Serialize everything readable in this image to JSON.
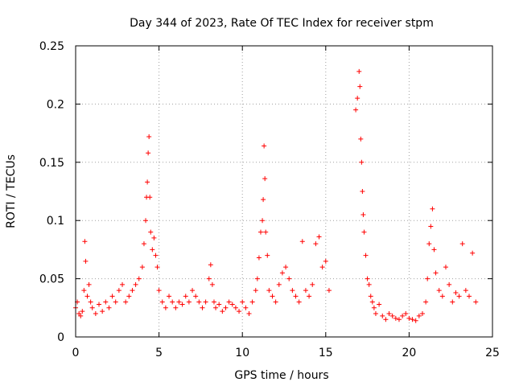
{
  "chart_data": {
    "type": "scatter",
    "title": "Day 344 of 2023, Rate Of TEC Index for receiver stpm",
    "xlabel": "GPS time / hours",
    "ylabel": "ROTI / TECUs",
    "xlim": [
      0,
      25
    ],
    "ylim": [
      0,
      0.25
    ],
    "xticks": [
      0,
      5,
      10,
      15,
      20,
      25
    ],
    "yticks": [
      0,
      0.05,
      0.1,
      0.15,
      0.2,
      0.25
    ],
    "xtick_labels": [
      "0",
      "5",
      "10",
      "15",
      "20",
      "25"
    ],
    "ytick_labels": [
      "0",
      "0.05",
      "0.1",
      "0.15",
      "0.2",
      "0.25"
    ],
    "grid": true,
    "marker": "plus",
    "color": "#ff0000",
    "series": [
      {
        "name": "ROTI",
        "x": [
          0.0,
          0.1,
          0.2,
          0.3,
          0.4,
          0.5,
          0.55,
          0.6,
          0.7,
          0.8,
          0.9,
          1.0,
          1.2,
          1.4,
          1.6,
          1.8,
          2.0,
          2.2,
          2.4,
          2.6,
          2.8,
          3.0,
          3.2,
          3.4,
          3.6,
          3.8,
          4.0,
          4.1,
          4.2,
          4.25,
          4.3,
          4.35,
          4.4,
          4.45,
          4.5,
          4.6,
          4.7,
          4.8,
          4.9,
          5.0,
          5.2,
          5.4,
          5.6,
          5.8,
          6.0,
          6.2,
          6.4,
          6.6,
          6.8,
          7.0,
          7.2,
          7.4,
          7.6,
          7.8,
          8.0,
          8.1,
          8.2,
          8.3,
          8.4,
          8.6,
          8.8,
          9.0,
          9.2,
          9.4,
          9.6,
          9.8,
          10.0,
          10.2,
          10.4,
          10.6,
          10.8,
          10.9,
          11.0,
          11.1,
          11.2,
          11.25,
          11.3,
          11.35,
          11.4,
          11.5,
          11.6,
          11.8,
          12.0,
          12.2,
          12.4,
          12.6,
          12.8,
          13.0,
          13.2,
          13.4,
          13.6,
          13.8,
          14.0,
          14.2,
          14.4,
          14.6,
          14.8,
          15.0,
          15.2,
          16.8,
          16.9,
          17.0,
          17.05,
          17.1,
          17.15,
          17.2,
          17.25,
          17.3,
          17.4,
          17.5,
          17.6,
          17.7,
          17.8,
          17.9,
          18.0,
          18.2,
          18.4,
          18.6,
          18.8,
          19.0,
          19.2,
          19.4,
          19.6,
          19.8,
          20.0,
          20.2,
          20.4,
          20.6,
          20.8,
          21.0,
          21.1,
          21.2,
          21.3,
          21.4,
          21.5,
          21.6,
          21.8,
          22.0,
          22.2,
          22.4,
          22.6,
          22.8,
          23.0,
          23.2,
          23.4,
          23.6,
          23.8,
          24.0
        ],
        "y": [
          0.025,
          0.03,
          0.02,
          0.018,
          0.022,
          0.04,
          0.082,
          0.065,
          0.035,
          0.045,
          0.03,
          0.025,
          0.02,
          0.028,
          0.022,
          0.03,
          0.025,
          0.035,
          0.03,
          0.04,
          0.045,
          0.03,
          0.035,
          0.04,
          0.045,
          0.05,
          0.06,
          0.08,
          0.1,
          0.12,
          0.133,
          0.158,
          0.172,
          0.12,
          0.09,
          0.075,
          0.085,
          0.07,
          0.06,
          0.04,
          0.03,
          0.025,
          0.035,
          0.03,
          0.025,
          0.03,
          0.028,
          0.035,
          0.03,
          0.04,
          0.035,
          0.03,
          0.025,
          0.03,
          0.05,
          0.062,
          0.045,
          0.03,
          0.025,
          0.028,
          0.022,
          0.025,
          0.03,
          0.028,
          0.025,
          0.022,
          0.03,
          0.025,
          0.02,
          0.03,
          0.04,
          0.05,
          0.068,
          0.09,
          0.1,
          0.118,
          0.164,
          0.136,
          0.09,
          0.07,
          0.04,
          0.035,
          0.03,
          0.045,
          0.055,
          0.06,
          0.05,
          0.04,
          0.035,
          0.03,
          0.082,
          0.04,
          0.035,
          0.045,
          0.08,
          0.086,
          0.06,
          0.065,
          0.04,
          0.195,
          0.205,
          0.228,
          0.215,
          0.17,
          0.15,
          0.125,
          0.105,
          0.09,
          0.07,
          0.05,
          0.045,
          0.035,
          0.03,
          0.025,
          0.02,
          0.028,
          0.018,
          0.015,
          0.02,
          0.018,
          0.016,
          0.015,
          0.018,
          0.02,
          0.016,
          0.015,
          0.014,
          0.018,
          0.02,
          0.03,
          0.05,
          0.08,
          0.095,
          0.11,
          0.075,
          0.055,
          0.04,
          0.035,
          0.06,
          0.045,
          0.03,
          0.038,
          0.035,
          0.08,
          0.04,
          0.035,
          0.072,
          0.03
        ]
      }
    ]
  }
}
